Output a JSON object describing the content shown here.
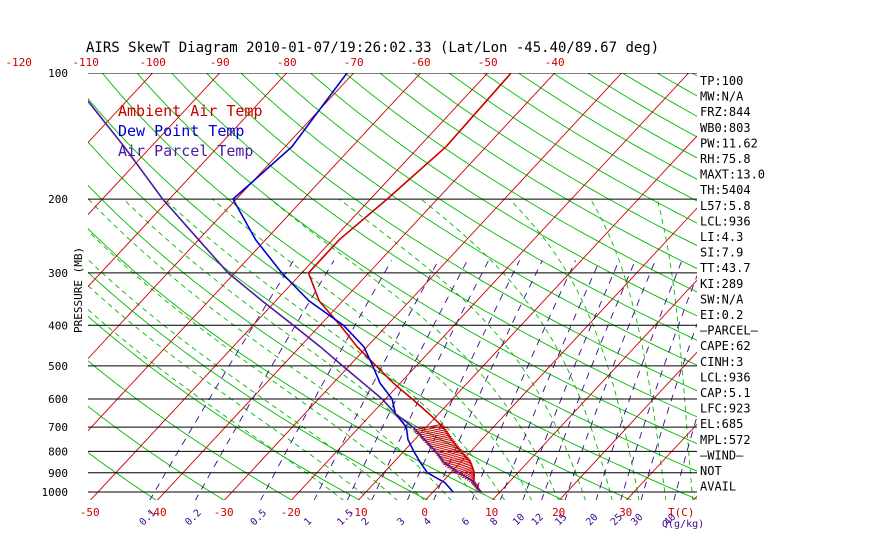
{
  "chart_data": {
    "type": "line",
    "title": "AIRS SkewT Diagram 2010-01-07/19:26:02.33 (Lat/Lon -45.40/89.67 deg)",
    "ylabel": "PRESSURE (MB)",
    "pressure_ticks": [
      "100",
      "200",
      "300",
      "400",
      "500",
      "600",
      "700",
      "800",
      "900",
      "1000"
    ],
    "pressure_tick_values": [
      100,
      200,
      300,
      400,
      500,
      600,
      700,
      800,
      900,
      1000
    ],
    "ylim": [
      1000,
      100
    ],
    "xlim": [
      -50,
      10
    ],
    "y_scale": "log",
    "top_ticks": [
      "-120",
      "-110",
      "-100",
      "-90",
      "-80",
      "-70",
      "-60",
      "-50",
      "-40"
    ],
    "top_tick_values": [
      -120,
      -110,
      -100,
      -90,
      -80,
      -70,
      -60,
      -50,
      -40
    ],
    "bottom_ticks": [
      "-50",
      "-40",
      "-30",
      "-20",
      "-10",
      "0",
      "10",
      "20",
      "30"
    ],
    "bottom_tick_values": [
      -50,
      -40,
      -30,
      -20,
      -10,
      0,
      10,
      20,
      30
    ],
    "bottom_unit": "T(C)",
    "mixing_ratio_labels": [
      "0.1",
      "0.2",
      "0.5",
      "1",
      "1.5",
      "2",
      "3",
      "4",
      "6",
      "8",
      "10",
      "12",
      "15",
      "20",
      "25",
      "30",
      "40"
    ],
    "mixing_ratio_values": [
      0.1,
      0.2,
      0.5,
      1,
      1.5,
      2,
      3,
      4,
      6,
      8,
      10,
      12,
      15,
      20,
      25,
      30,
      40
    ],
    "mixing_unit": "Q(g/kg)",
    "colors": {
      "ambient": "#cc0000",
      "dewpoint": "#0000cc",
      "parcel": "#4b1a9e",
      "isotherm": "#cc0000",
      "dry_adiabat": "#00bb00",
      "moist_adiabat": "#00bb00",
      "mixing_ratio": "#3a0a8a",
      "hatch": "#cc0000"
    },
    "legend": [
      {
        "name": "Ambient Air Temp",
        "color": "#cc0000"
      },
      {
        "name": "Dew Point Temp",
        "color": "#0000cc"
      },
      {
        "name": "Air Parcel Temp",
        "color": "#4b1a9e"
      }
    ],
    "legend_position": "top-left",
    "series": [
      {
        "name": "Ambient Air Temp",
        "points": [
          [
            1000,
            7.2
          ],
          [
            950,
            4.8
          ],
          [
            900,
            3.5
          ],
          [
            850,
            1.5
          ],
          [
            800,
            -1.5
          ],
          [
            750,
            -4.5
          ],
          [
            700,
            -7.5
          ],
          [
            650,
            -11.5
          ],
          [
            600,
            -16.0
          ],
          [
            550,
            -21.0
          ],
          [
            500,
            -26.0
          ],
          [
            450,
            -31.5
          ],
          [
            400,
            -37.0
          ],
          [
            350,
            -43.5
          ],
          [
            300,
            -49.0
          ],
          [
            250,
            -49.0
          ],
          [
            200,
            -47.5
          ],
          [
            150,
            -46.0
          ],
          [
            100,
            -46.5
          ]
        ]
      },
      {
        "name": "Dew Point Temp",
        "points": [
          [
            1000,
            3.0
          ],
          [
            950,
            0.5
          ],
          [
            900,
            -3.5
          ],
          [
            850,
            -6.0
          ],
          [
            800,
            -8.5
          ],
          [
            750,
            -11.0
          ],
          [
            700,
            -13.0
          ],
          [
            650,
            -16.5
          ],
          [
            600,
            -19.0
          ],
          [
            550,
            -23.0
          ],
          [
            500,
            -26.5
          ],
          [
            450,
            -30.5
          ],
          [
            400,
            -36.5
          ],
          [
            350,
            -45.0
          ],
          [
            300,
            -53.0
          ],
          [
            250,
            -61.5
          ],
          [
            200,
            -70.5
          ],
          [
            150,
            -69.0
          ],
          [
            100,
            -71.0
          ]
        ]
      },
      {
        "name": "Air Parcel Temp",
        "points": [
          [
            1000,
            7.2
          ],
          [
            936,
            4.0
          ],
          [
            900,
            1.2
          ],
          [
            850,
            -2.5
          ],
          [
            800,
            -5.2
          ],
          [
            750,
            -8.5
          ],
          [
            700,
            -12.0
          ],
          [
            650,
            -16.5
          ],
          [
            600,
            -20.5
          ],
          [
            550,
            -25.5
          ],
          [
            500,
            -31.0
          ],
          [
            450,
            -37.0
          ],
          [
            400,
            -44.0
          ],
          [
            350,
            -52.0
          ],
          [
            300,
            -61.0
          ],
          [
            250,
            -70.0
          ],
          [
            200,
            -81.0
          ],
          [
            150,
            -94.0
          ],
          [
            100,
            -113.0
          ]
        ]
      }
    ],
    "indices": [
      "TP:100",
      "MW:N/A",
      "FRZ:844",
      "WB0:803",
      "PW:11.62",
      "RH:75.8",
      "MAXT:13.0",
      "TH:5404",
      "L57:5.8",
      "LCL:936",
      "LI:4.3",
      "SI:7.9",
      "TT:43.7",
      "KI:289",
      "SW:N/A",
      "EI:0.2",
      "—PARCEL—",
      "CAPE:62",
      "CINH:3",
      "LCL:936",
      "CAP:5.1",
      "LFC:923",
      "EL:685",
      "MPL:572",
      "—WIND—",
      "NOT",
      "AVAIL"
    ]
  }
}
